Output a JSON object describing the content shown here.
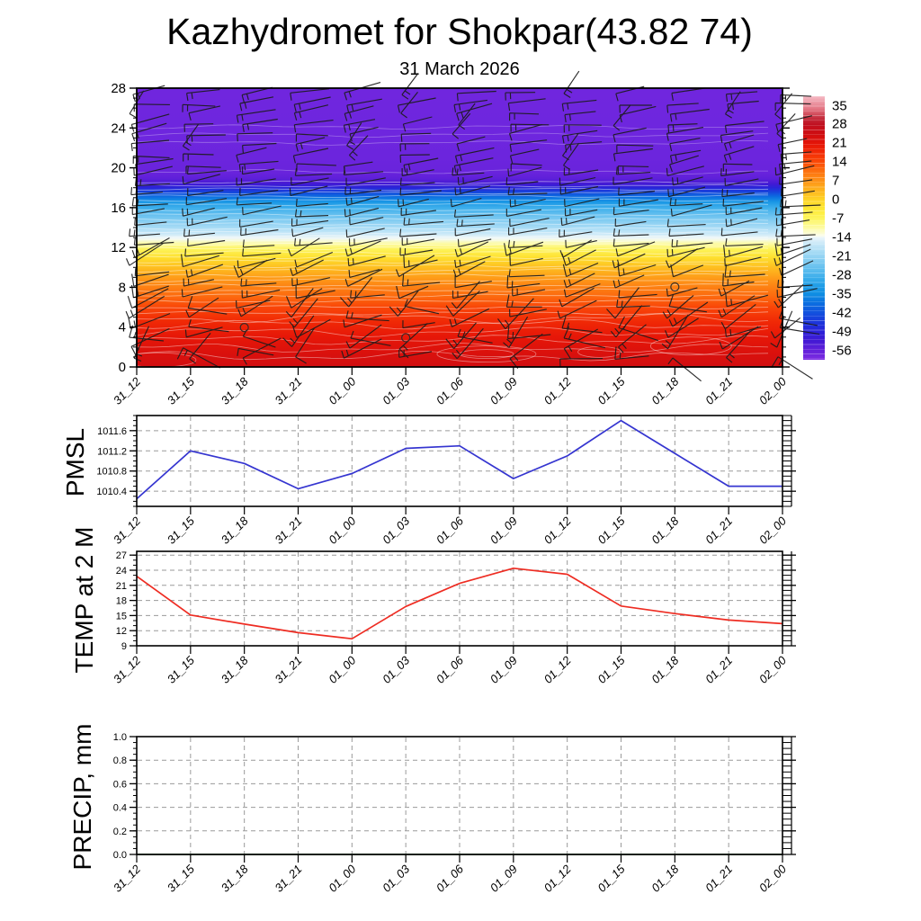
{
  "title": "Kazhydromet for Shokpar(43.82 74)",
  "subtitle": "31 March 2026",
  "time_labels": [
    "31_12",
    "31_15",
    "31_18",
    "31_21",
    "01_00",
    "01_03",
    "01_06",
    "01_09",
    "01_12",
    "01_15",
    "01_18",
    "01_21",
    "02_00"
  ],
  "chart_data": [
    {
      "type": "heatmap",
      "name": "temperature-height-cross-section",
      "ylim": [
        0,
        28
      ],
      "y_ticks": [
        0,
        4,
        8,
        12,
        16,
        20,
        24,
        28
      ],
      "colorbar_levels": [
        35,
        28,
        21,
        14,
        7,
        0,
        -7,
        -14,
        -21,
        -28,
        -35,
        -42,
        -49,
        -56
      ],
      "colorbar_range": [
        38.5,
        -59.5
      ],
      "colormap": [
        [
          38.5,
          "#f5bac5"
        ],
        [
          33.5,
          "#e2717f"
        ],
        [
          30.5,
          "#c43040"
        ],
        [
          28,
          "#c01020"
        ],
        [
          24.5,
          "#ce0d12"
        ],
        [
          21,
          "#e41408"
        ],
        [
          17.5,
          "#f22b06"
        ],
        [
          14,
          "#fa4a08"
        ],
        [
          10.5,
          "#fd7210"
        ],
        [
          7,
          "#fe9317"
        ],
        [
          3.5,
          "#feb51e"
        ],
        [
          0,
          "#fed426"
        ],
        [
          -3.5,
          "#fee935"
        ],
        [
          -7,
          "#fdf55e"
        ],
        [
          -10.5,
          "#fdfba6"
        ],
        [
          -13.3,
          "#fcfde8"
        ],
        [
          -14,
          "#edf6fb"
        ],
        [
          -15.5,
          "#d4ecf9"
        ],
        [
          -19,
          "#abddf5"
        ],
        [
          -23,
          "#7fcbf1"
        ],
        [
          -27,
          "#51b8ed"
        ],
        [
          -31,
          "#27a3e8"
        ],
        [
          -35,
          "#0f8ee3"
        ],
        [
          -38.5,
          "#0b6ee0"
        ],
        [
          -42,
          "#1251de"
        ],
        [
          -45.5,
          "#1b36db"
        ],
        [
          -49,
          "#2b22d8"
        ],
        [
          -52.5,
          "#4319d4"
        ],
        [
          -56,
          "#6321da"
        ],
        [
          -59.5,
          "#7c2be2"
        ]
      ],
      "temperature_profile": [
        [
          0,
          24
        ],
        [
          1.5,
          22.5
        ],
        [
          3,
          20.5
        ],
        [
          4.5,
          18
        ],
        [
          6,
          14.5
        ],
        [
          7,
          11.5
        ],
        [
          8,
          9
        ],
        [
          9,
          6
        ],
        [
          10,
          2.5
        ],
        [
          11,
          -2
        ],
        [
          11.8,
          -6.5
        ],
        [
          12.4,
          -10.5
        ],
        [
          12.9,
          -13.8
        ],
        [
          13.4,
          -16.5
        ],
        [
          14,
          -19.5
        ],
        [
          15,
          -24
        ],
        [
          16,
          -29
        ],
        [
          16.6,
          -33.5
        ],
        [
          17.1,
          -38.5
        ],
        [
          17.6,
          -44
        ],
        [
          18,
          -48.5
        ],
        [
          18.4,
          -52.5
        ],
        [
          18.9,
          -55.5
        ],
        [
          19.5,
          -56.8
        ],
        [
          21,
          -57.3
        ],
        [
          24,
          -57.6
        ],
        [
          28,
          -57.8
        ]
      ],
      "contour_heights": [
        1.1,
        1.9,
        2.7,
        3.5,
        4.3,
        4.9,
        5.4,
        6.0,
        6.6,
        7.15,
        7.7,
        8.2,
        8.7,
        9.2,
        9.7,
        10.15,
        10.6,
        11.05,
        11.5,
        11.9,
        12.3,
        12.7,
        13.1,
        13.5,
        13.9,
        14.35,
        14.8,
        15.3,
        15.8,
        16.3,
        16.75,
        17.15,
        17.5,
        17.85,
        18.2,
        18.55,
        19.6,
        22.5,
        23.3,
        24.1
      ],
      "contour_loops": [
        {
          "x_index": 6.5,
          "h": 1.3,
          "rx": 55,
          "ry": 9
        },
        {
          "x_index": 6.5,
          "h": 1.3,
          "rx": 30,
          "ry": 5
        },
        {
          "x_index": 0.4,
          "h": 0.7,
          "rx": 42,
          "ry": 8
        },
        {
          "x_index": 10.3,
          "h": 2.1,
          "rx": 45,
          "ry": 10
        },
        {
          "x_index": 8.6,
          "h": 1.5,
          "rx": 24,
          "ry": 6
        }
      ],
      "calm_points": [
        [
          "31_18",
          4
        ],
        [
          "01_03",
          3
        ],
        [
          "01_18",
          8
        ]
      ],
      "wind_barbs": {
        "columns": 13,
        "h_start": 0.9,
        "h_step": 1.02,
        "color": "#1c1c1c",
        "bands": [
          {
            "h_max": 2.2,
            "tilt": 14,
            "jitter": 55,
            "len": 42,
            "tick": "mixed"
          },
          {
            "h_max": 7,
            "tilt": 16,
            "jitter": 38,
            "len": 42,
            "tick": "up"
          },
          {
            "h_max": 12,
            "tilt": 18,
            "jitter": 16,
            "len": 40,
            "tick": "up"
          },
          {
            "h_max": 19.5,
            "tilt": 9,
            "jitter": 7,
            "len": 40,
            "tick": "up"
          },
          {
            "h_max": 28.5,
            "tilt": 7,
            "jitter": 10,
            "len": 38,
            "tick": "down"
          }
        ]
      }
    },
    {
      "type": "line",
      "name": "pmsl",
      "ylabel": "PMSL",
      "color": "#3535d0",
      "values": [
        1010.25,
        1011.2,
        1010.95,
        1010.45,
        1010.75,
        1011.25,
        1011.3,
        1010.65,
        1011.1,
        1011.8,
        1011.15,
        1010.5,
        1010.5
      ],
      "y_tick_labels": [
        "1010.4",
        "1010.8",
        "1011.2",
        "1011.6"
      ],
      "y_tick_values": [
        1010.4,
        1010.8,
        1011.2,
        1011.6
      ],
      "ylim": [
        1010.1,
        1011.9
      ],
      "minor_step": 0.1
    },
    {
      "type": "line",
      "name": "temp-2m",
      "ylabel": "TEMP at 2 M",
      "color": "#ee2c22",
      "values": [
        22.8,
        15.1,
        13.3,
        11.6,
        10.4,
        16.8,
        21.4,
        24.4,
        23.2,
        16.9,
        15.4,
        14.1,
        13.4
      ],
      "y_tick_labels": [
        "9",
        "12",
        "15",
        "18",
        "21",
        "24",
        "27"
      ],
      "y_tick_values": [
        9,
        12,
        15,
        18,
        21,
        24,
        27
      ],
      "ylim": [
        9,
        27.75
      ],
      "minor_step": 1
    },
    {
      "type": "line",
      "name": "precip",
      "ylabel": "PRECIP, mm",
      "color": "#1e7a1e",
      "values": [
        0,
        0,
        0,
        0,
        0,
        0,
        0,
        0,
        0,
        0,
        0,
        0,
        0
      ],
      "y_tick_labels": [
        "0.0",
        "0.2",
        "0.4",
        "0.6",
        "0.8",
        "1.0"
      ],
      "y_tick_values": [
        0,
        0.2,
        0.4,
        0.6,
        0.8,
        1.0
      ],
      "ylim": [
        0,
        1
      ],
      "minor_step": 0.05
    }
  ]
}
